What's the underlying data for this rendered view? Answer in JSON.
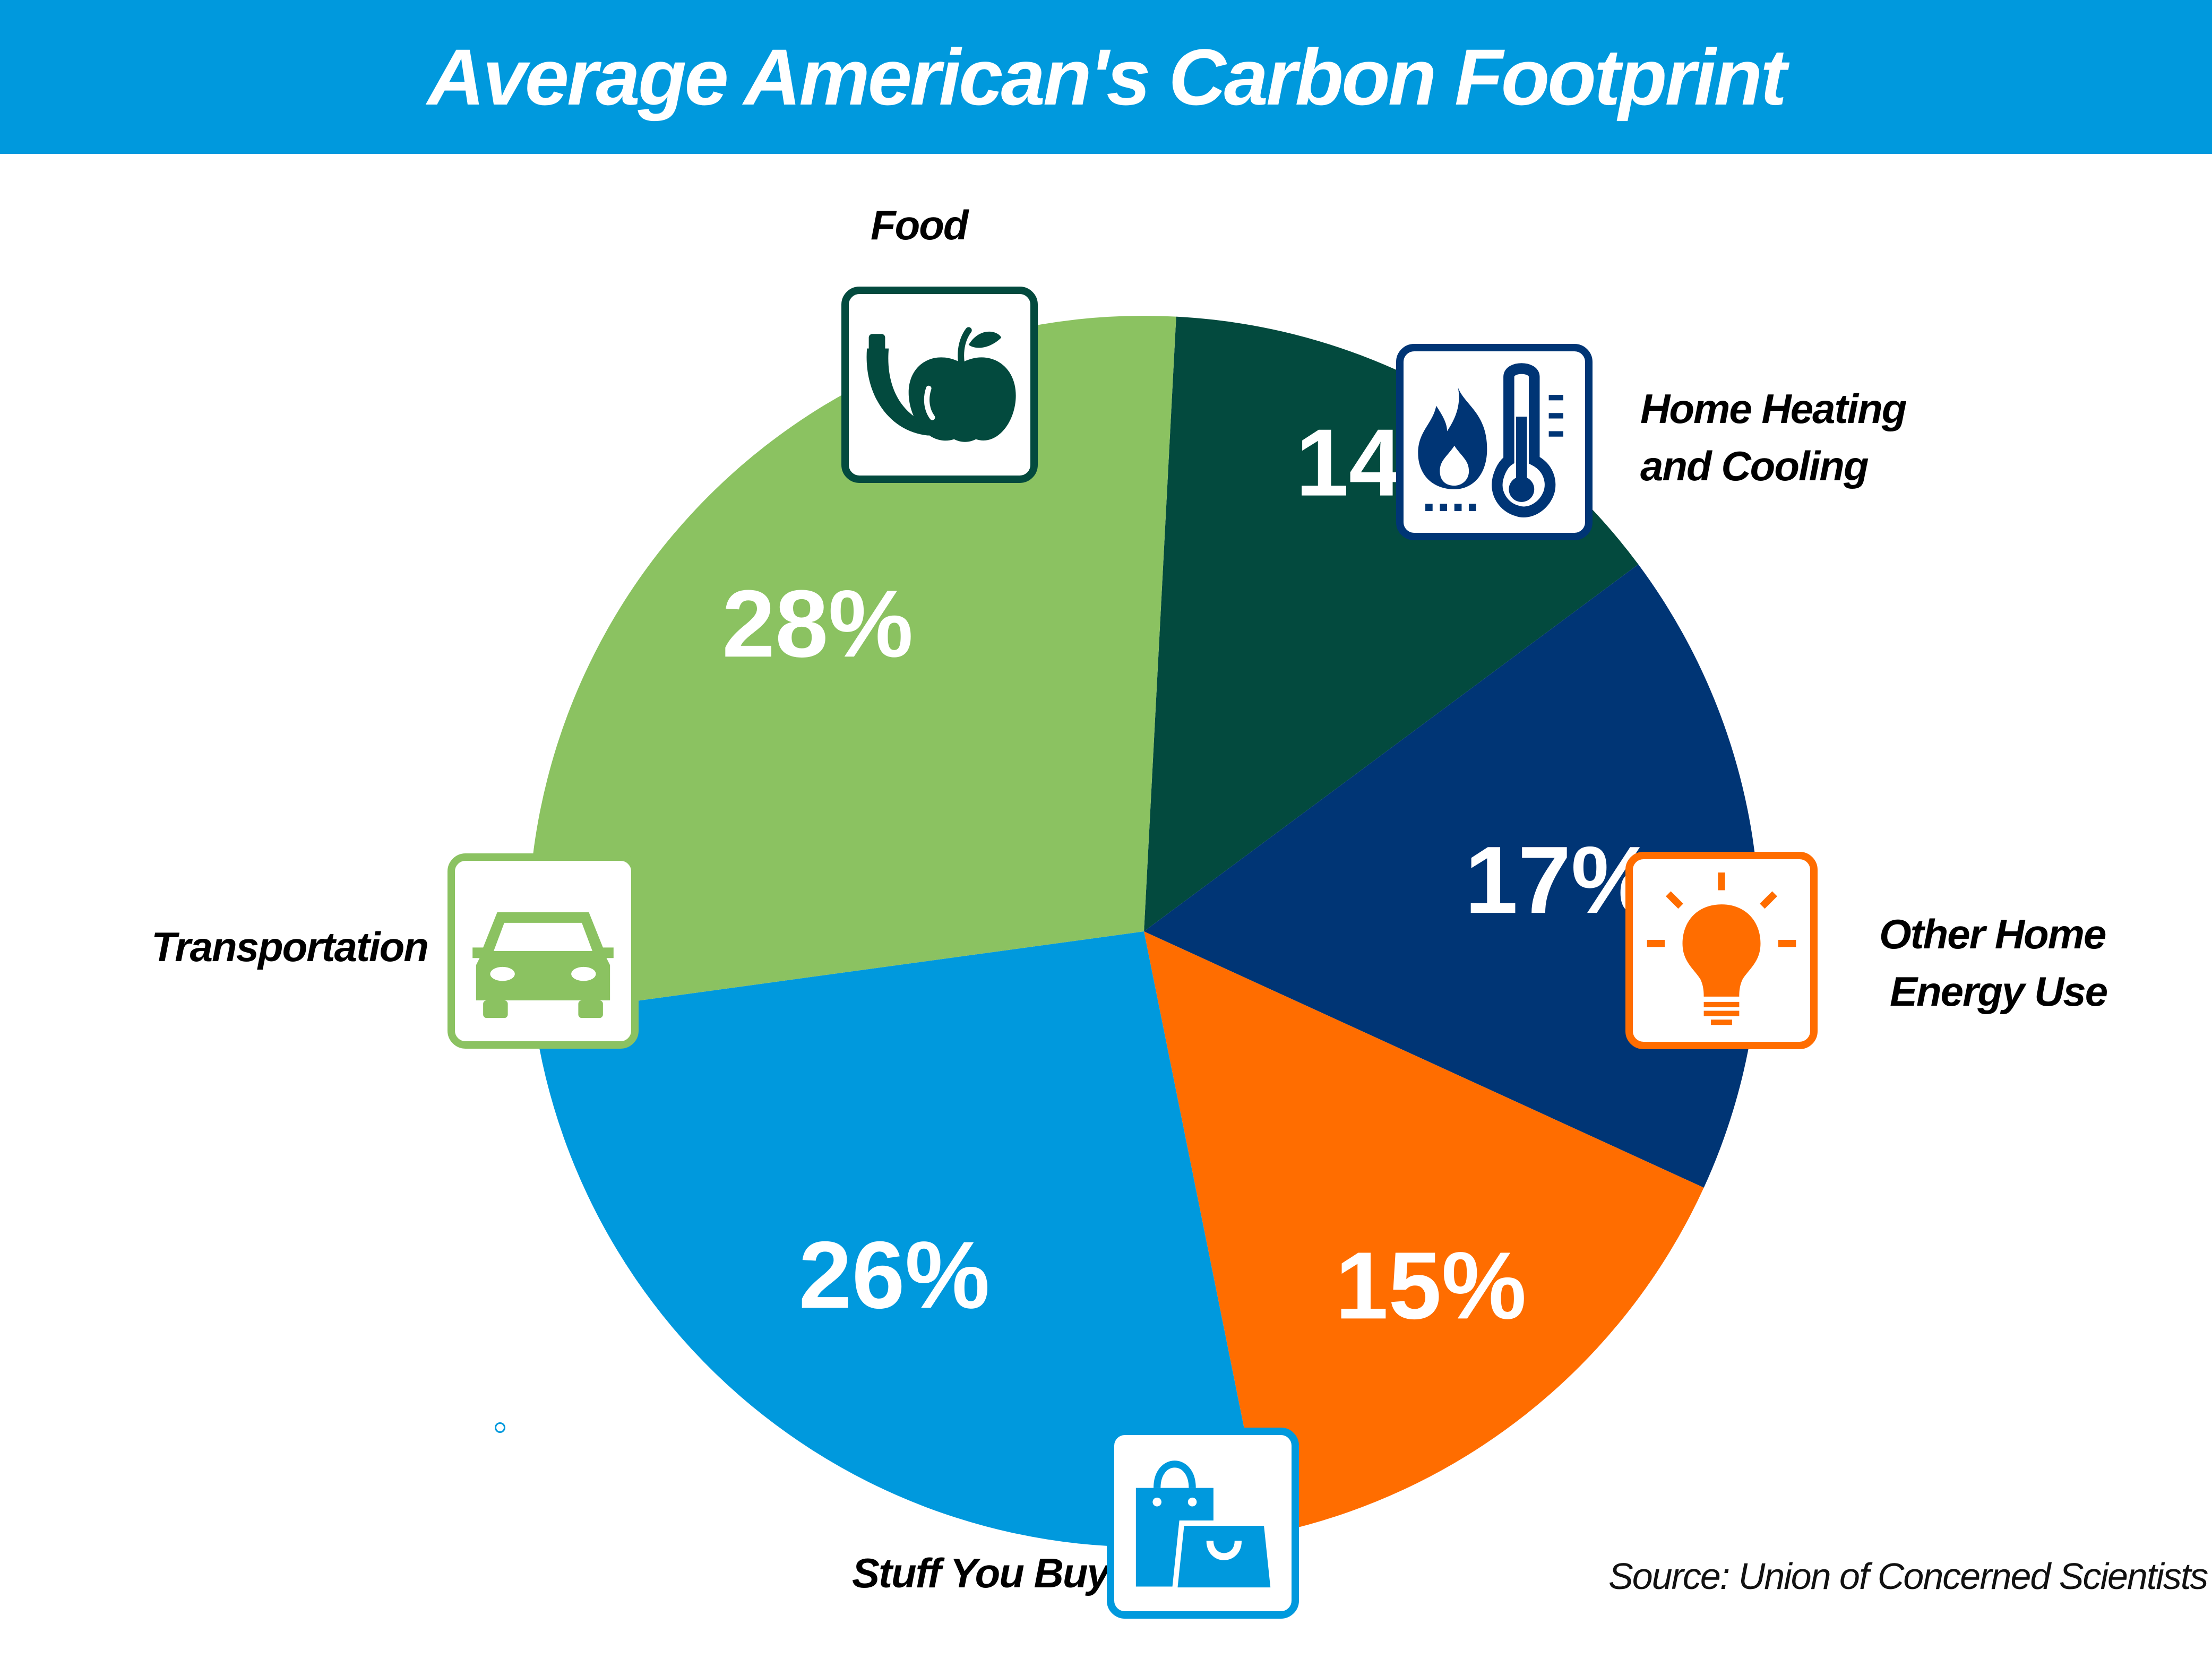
{
  "header": {
    "title": "Average American's Carbon Footprint"
  },
  "source": "Source: Union of Concerned Scientists",
  "chart_data": {
    "type": "pie",
    "title": "Average American's Carbon Footprint",
    "slices": [
      {
        "label": "Food",
        "value": 14,
        "value_label": "14%",
        "color": "#034a3e",
        "icon": "fruit-icon"
      },
      {
        "label": "Home Heating and Cooling",
        "label_lines": [
          "Home Heating",
          "and Cooling"
        ],
        "value": 17,
        "value_label": "17%",
        "color": "#003575",
        "icon": "flame-thermometer-icon"
      },
      {
        "label": "Other Home Energy Use",
        "label_lines": [
          "Other Home",
          "Energy Use"
        ],
        "value": 15,
        "value_label": "15%",
        "color": "#ff6d00",
        "icon": "lightbulb-icon"
      },
      {
        "label": "Stuff You Buy",
        "value": 26,
        "value_label": "26%",
        "color": "#0099dd",
        "icon": "shopping-bags-icon"
      },
      {
        "label": "Transportation",
        "value": 28,
        "value_label": "28%",
        "color": "#8bc261",
        "icon": "car-icon"
      }
    ],
    "start_angle_deg": 3,
    "direction": "clockwise"
  }
}
